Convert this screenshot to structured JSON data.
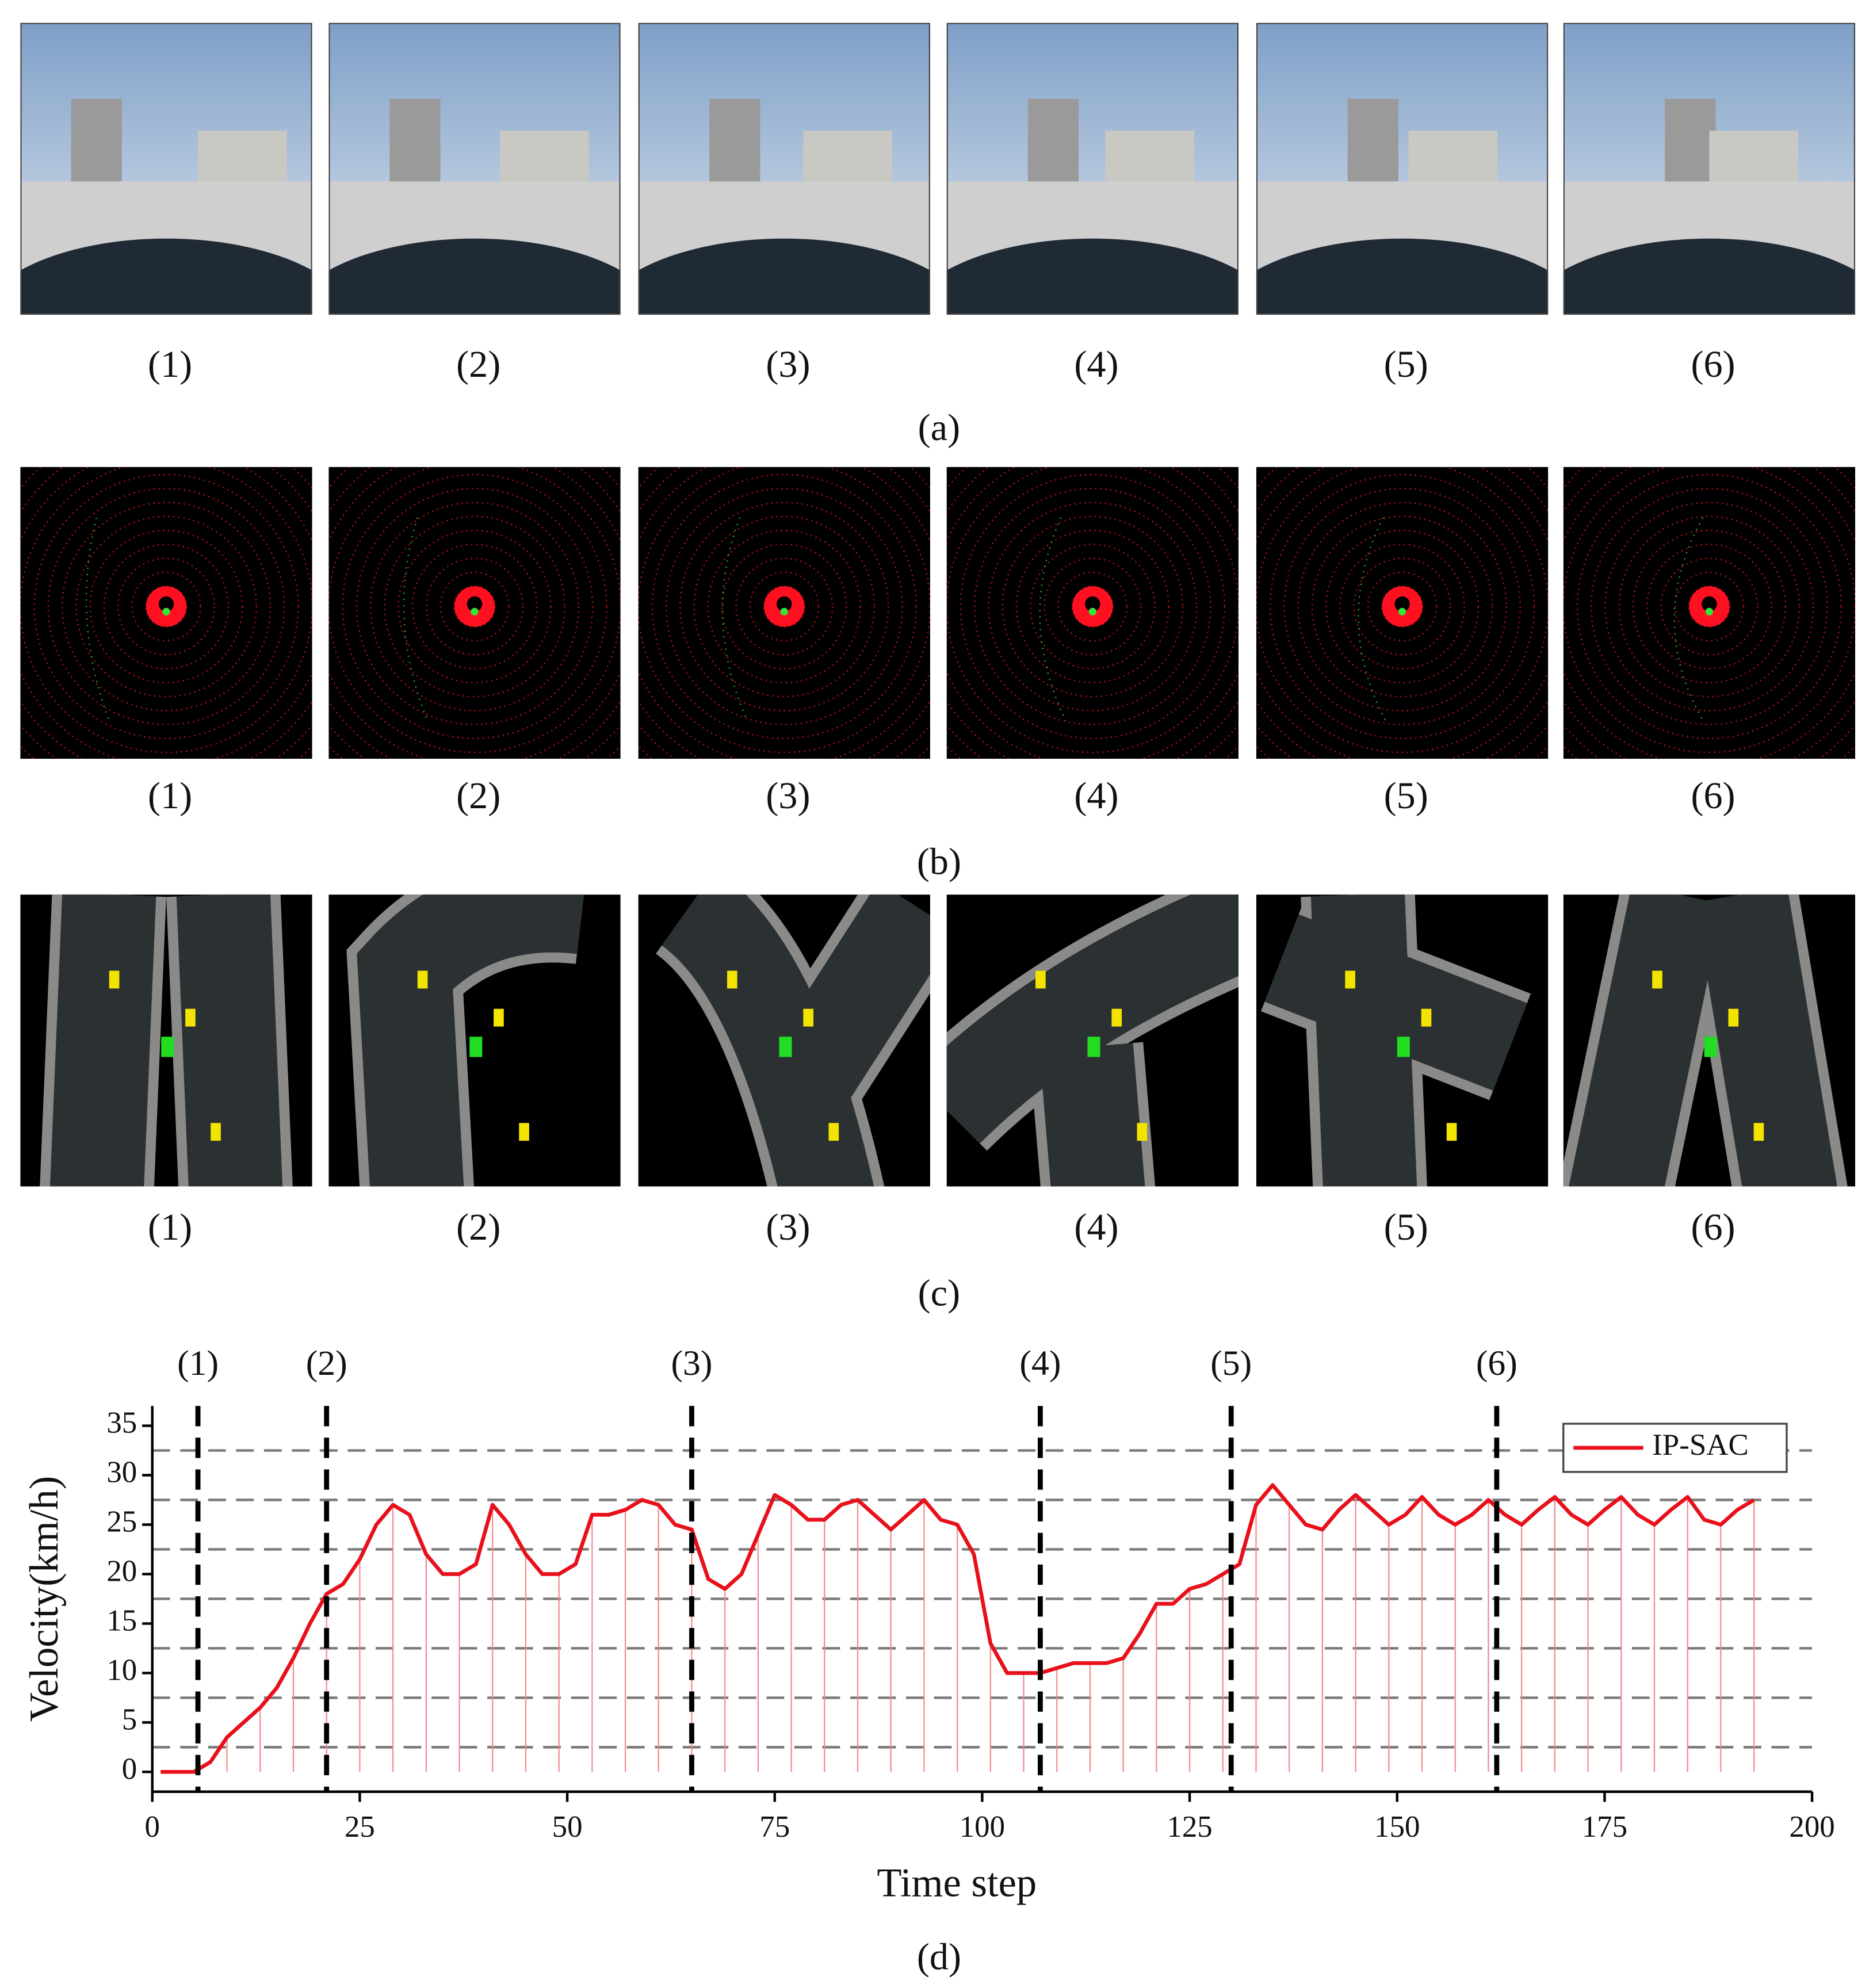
{
  "figure": {
    "rows": [
      {
        "label": "(a)",
        "panels": [
          "(1)",
          "(2)",
          "(3)",
          "(4)",
          "(5)",
          "(6)"
        ]
      },
      {
        "label": "(b)",
        "panels": [
          "(1)",
          "(2)",
          "(3)",
          "(4)",
          "(5)",
          "(6)"
        ]
      },
      {
        "label": "(c)",
        "panels": [
          "(1)",
          "(2)",
          "(3)",
          "(4)",
          "(5)",
          "(6)"
        ]
      }
    ],
    "chart_label": "(d)"
  },
  "chart_data": {
    "type": "line",
    "x_label": "Time step",
    "y_label": "Velocity(km/h)",
    "xlim": [
      0,
      200
    ],
    "xticks": [
      0,
      25,
      50,
      75,
      100,
      125,
      150,
      175,
      200
    ],
    "ylim": [
      -2,
      37
    ],
    "yticks": [
      0,
      5,
      10,
      15,
      20,
      25,
      30,
      35
    ],
    "hlines": [
      2.5,
      7.5,
      12.5,
      17.5,
      22.5,
      27.5,
      32.5
    ],
    "markers": [
      {
        "x": 5.5,
        "label": "(1)"
      },
      {
        "x": 21,
        "label": "(2)"
      },
      {
        "x": 65,
        "label": "(3)"
      },
      {
        "x": 107,
        "label": "(4)"
      },
      {
        "x": 130,
        "label": "(5)"
      },
      {
        "x": 162,
        "label": "(6)"
      }
    ],
    "legend": "upper right",
    "x": [
      1,
      3,
      5,
      7,
      9,
      11,
      13,
      15,
      17,
      19,
      21,
      23,
      25,
      27,
      29,
      31,
      33,
      35,
      37,
      39,
      41,
      43,
      45,
      47,
      49,
      51,
      53,
      55,
      57,
      59,
      61,
      63,
      65,
      67,
      69,
      71,
      73,
      75,
      77,
      79,
      81,
      83,
      85,
      87,
      89,
      91,
      93,
      95,
      97,
      99,
      101,
      103,
      105,
      107,
      109,
      111,
      113,
      115,
      117,
      119,
      121,
      123,
      125,
      127,
      129,
      131,
      133,
      135,
      137,
      139,
      141,
      143,
      145,
      147,
      149,
      151,
      153,
      155,
      157,
      159,
      161,
      163,
      165,
      167,
      169,
      171,
      173,
      175,
      177,
      179,
      181,
      183,
      185,
      187,
      189,
      191,
      193
    ],
    "series": [
      {
        "name": "IP-SAC",
        "color": "#e8101a",
        "values": [
          0,
          0,
          0,
          1,
          3.5,
          5,
          6.5,
          8.5,
          11.5,
          15,
          18,
          19,
          21.5,
          25,
          27,
          26,
          22,
          20,
          20,
          21,
          27,
          25,
          22,
          20,
          20,
          21,
          26,
          26,
          26.5,
          27.5,
          27,
          25,
          24.5,
          19.5,
          18.5,
          20,
          24,
          28,
          27,
          25.5,
          25.5,
          27,
          27.5,
          26,
          24.5,
          26,
          27.5,
          25.5,
          25,
          22,
          13,
          10,
          10,
          10,
          10.5,
          11,
          11,
          11,
          11.5,
          14,
          17,
          17,
          18.5,
          19,
          20,
          21,
          27,
          29,
          27,
          25,
          24.5,
          26.5,
          28,
          26.5,
          25,
          26,
          27.8,
          26,
          25,
          26,
          27.5,
          26,
          25,
          26.5,
          27.8,
          26,
          25,
          26.5,
          27.8,
          26,
          25,
          26.5,
          27.8,
          25.5,
          25,
          26.5,
          27.5
        ]
      }
    ]
  }
}
